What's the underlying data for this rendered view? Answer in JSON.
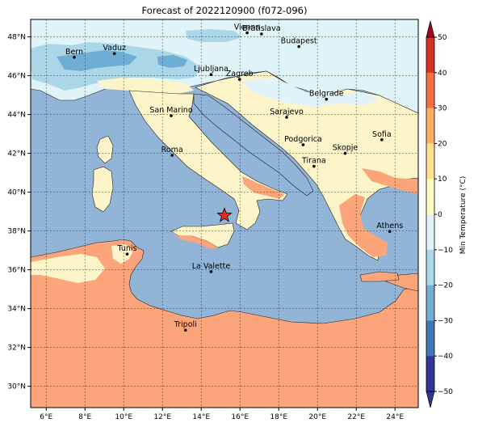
{
  "title": "Forecast of 2022120900 (f072-096)",
  "colors": {
    "sea": "#92b4d6",
    "land_warm": "#fca57a",
    "land_mild": "#fdf5c9",
    "cold_1": "#e0f3f8",
    "cold_2": "#abd6e8",
    "cold_3": "#6faed4"
  },
  "axes": {
    "lon_ticks": [
      "6°E",
      "8°E",
      "10°E",
      "12°E",
      "14°E",
      "16°E",
      "18°E",
      "20°E",
      "22°E",
      "24°E"
    ],
    "lat_ticks": [
      "48°N",
      "46°N",
      "44°N",
      "42°N",
      "40°N",
      "38°N",
      "36°N",
      "34°N",
      "32°N",
      "30°N"
    ],
    "lon_range": [
      5.2,
      25.2
    ],
    "lat_range": [
      28.9,
      48.9
    ],
    "grid": true
  },
  "colorbar": {
    "label": "Min Temperature (°C)",
    "ticks": [
      "50",
      "40",
      "30",
      "20",
      "10",
      "0",
      "−10",
      "−20",
      "−30",
      "−40",
      "−50"
    ],
    "colors": [
      "#a50026",
      "#d73027",
      "#f46d43",
      "#fdae61",
      "#fee090",
      "#ffffbf",
      "#e0f3f8",
      "#abd9e9",
      "#74add1",
      "#4575b4",
      "#313695"
    ],
    "extend": "both"
  },
  "marker": {
    "symbol": "red-star",
    "lon": 15.2,
    "lat": 38.8
  },
  "cities": [
    {
      "name": "Bern",
      "lon": 7.45,
      "lat": 46.95
    },
    {
      "name": "Vaduz",
      "lon": 9.52,
      "lat": 47.14
    },
    {
      "name": "Vienna",
      "lon": 16.37,
      "lat": 48.21
    },
    {
      "name": "Bratislava",
      "lon": 17.11,
      "lat": 48.15
    },
    {
      "name": "Budapest",
      "lon": 19.04,
      "lat": 47.5
    },
    {
      "name": "Ljubljana",
      "lon": 14.51,
      "lat": 46.06
    },
    {
      "name": "Zagreb",
      "lon": 15.98,
      "lat": 45.81
    },
    {
      "name": "Belgrade",
      "lon": 20.46,
      "lat": 44.79
    },
    {
      "name": "San Marino",
      "lon": 12.45,
      "lat": 43.94
    },
    {
      "name": "Sarajevo",
      "lon": 18.41,
      "lat": 43.86
    },
    {
      "name": "Podgorica",
      "lon": 19.26,
      "lat": 42.44
    },
    {
      "name": "Skopje",
      "lon": 21.43,
      "lat": 42.0
    },
    {
      "name": "Sofia",
      "lon": 23.32,
      "lat": 42.7
    },
    {
      "name": "Roma",
      "lon": 12.5,
      "lat": 41.9
    },
    {
      "name": "Tirana",
      "lon": 19.82,
      "lat": 41.33
    },
    {
      "name": "Athens",
      "lon": 23.73,
      "lat": 37.98
    },
    {
      "name": "Tunis",
      "lon": 10.18,
      "lat": 36.81
    },
    {
      "name": "La Valette",
      "lon": 14.51,
      "lat": 35.9
    },
    {
      "name": "Tripoli",
      "lon": 13.19,
      "lat": 32.89
    }
  ]
}
